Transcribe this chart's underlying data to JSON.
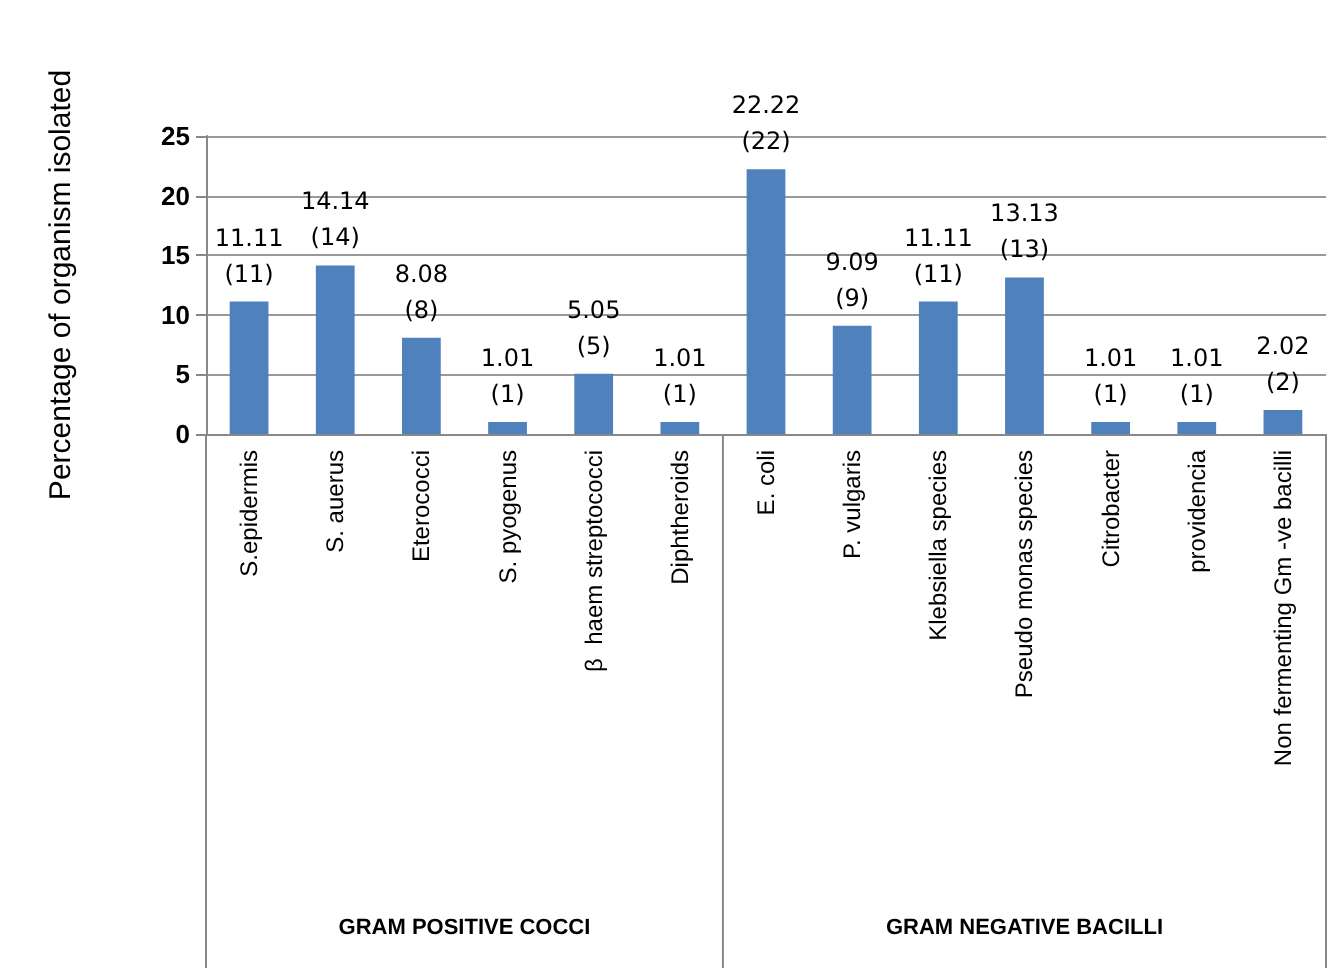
{
  "chart_data": {
    "type": "bar",
    "ylabel": "Percentage of organism isolated",
    "categories": [
      "S.epidermis",
      "S. auerus",
      "Eterococci",
      "S. pyogenus",
      "β  haem streptococci",
      "Diphtheroids",
      "E. coli",
      "P. vulgaris",
      "Klebsiella species",
      "Pseudo monas species",
      "Citrobacter",
      "providencia",
      "Non fermenting Gm -ve bacilli"
    ],
    "values": [
      11.11,
      14.14,
      8.08,
      1.01,
      5.05,
      1.01,
      22.22,
      9.09,
      11.11,
      13.13,
      1.01,
      1.01,
      2.02
    ],
    "value_labels": [
      "11.11\n(11)",
      "14.14\n(14)",
      "8.08\n(8)",
      "1.01\n(1)",
      "5.05\n(5)",
      "1.01\n(1)",
      "22.22\n(22)",
      "9.09\n(9)",
      "11.11\n(11)",
      "13.13\n(13)",
      "1.01\n(1)",
      "1.01\n(1)",
      "2.02\n(2)"
    ],
    "color": "#4f81bd",
    "ylim": [
      0,
      25
    ],
    "yticks": [
      0,
      5,
      10,
      15,
      20,
      25
    ],
    "grid": "y",
    "annotations": [
      "GRAM POSITIVE COCCI",
      "GRAM NEGATIVE BACILLI"
    ]
  }
}
